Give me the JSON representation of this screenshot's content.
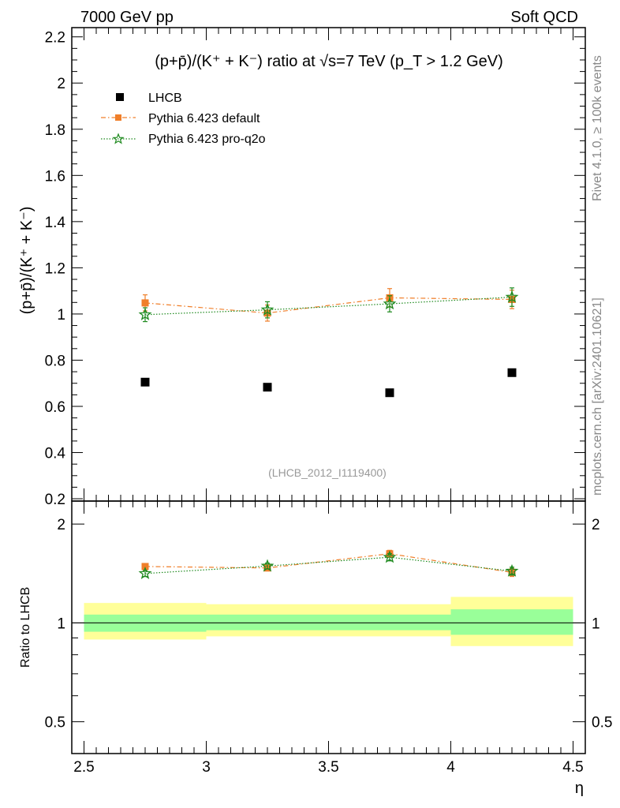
{
  "header": {
    "left": "7000 GeV pp",
    "right": "Soft QCD"
  },
  "side": {
    "rivet": "Rivet 4.1.0, ≥ 100k events",
    "mcplots": "mcplots.cern.ch [arXiv:2401.10621]"
  },
  "colors": {
    "data": "#000000",
    "default": "#f07f2a",
    "proq2o": "#1f8a1f",
    "band_inner": "#99ff99",
    "band_outer": "#ffff99"
  },
  "chart_data": [
    {
      "type": "scatter",
      "title": "(p+p̄)/(K⁺ + K⁻) ratio at √s=7 TeV (p_T > 1.2 GeV)",
      "ylabel": "(p+p̄)/(K⁺ + K⁻)",
      "xlabel": "η",
      "xlim": [
        2.45,
        4.55
      ],
      "ylim": [
        0.19,
        2.24
      ],
      "yticks": [
        "0.2",
        "0.4",
        "0.6",
        "0.8",
        "1",
        "1.2",
        "1.4",
        "1.6",
        "1.8",
        "2",
        "2.2"
      ],
      "watermark": "(LHCB_2012_I1119400)",
      "legend": [
        "LHCB",
        "Pythia 6.423 default",
        "Pythia 6.423 pro-q2o"
      ],
      "legend_position": "top-left",
      "x": [
        2.75,
        3.25,
        3.75,
        4.25
      ],
      "bins": [
        [
          2.5,
          3.0
        ],
        [
          3.0,
          3.5
        ],
        [
          3.5,
          4.0
        ],
        [
          4.0,
          4.5
        ]
      ],
      "series": [
        {
          "name": "LHCB",
          "values": [
            0.705,
            0.683,
            0.659,
            0.746
          ]
        },
        {
          "name": "Pythia 6.423 default",
          "values": [
            1.048,
            1.004,
            1.07,
            1.063
          ],
          "errors": [
            0.035,
            0.035,
            0.04,
            0.04
          ]
        },
        {
          "name": "Pythia 6.423 pro-q2o",
          "values": [
            0.997,
            1.018,
            1.044,
            1.073
          ],
          "errors": [
            0.03,
            0.035,
            0.035,
            0.04
          ]
        }
      ]
    },
    {
      "type": "scatter",
      "ylabel": "Ratio to LHCB",
      "xlabel": "η",
      "xlim": [
        2.45,
        4.55
      ],
      "ylim": [
        0.4,
        2.35
      ],
      "log_y": true,
      "yticks": [
        "0.5",
        "1",
        "2"
      ],
      "xticks": [
        "2.5",
        "3",
        "3.5",
        "4",
        "4.5"
      ],
      "bins": [
        [
          2.5,
          3.0
        ],
        [
          3.0,
          3.5
        ],
        [
          3.5,
          4.0
        ],
        [
          4.0,
          4.5
        ]
      ],
      "band_inner": [
        [
          0.94,
          1.06
        ],
        [
          0.95,
          1.06
        ],
        [
          0.95,
          1.06
        ],
        [
          0.92,
          1.1
        ]
      ],
      "band_outer": [
        [
          0.89,
          1.15
        ],
        [
          0.91,
          1.14
        ],
        [
          0.91,
          1.14
        ],
        [
          0.85,
          1.2
        ]
      ],
      "series": [
        {
          "name": "Pythia 6.423 default",
          "values": [
            1.485,
            1.47,
            1.624,
            1.425
          ],
          "errors": [
            0.03,
            0.03,
            0.04,
            0.04
          ]
        },
        {
          "name": "Pythia 6.423 pro-q2o",
          "values": [
            1.414,
            1.49,
            1.585,
            1.438
          ],
          "errors": [
            0.03,
            0.03,
            0.04,
            0.04
          ]
        }
      ]
    }
  ]
}
